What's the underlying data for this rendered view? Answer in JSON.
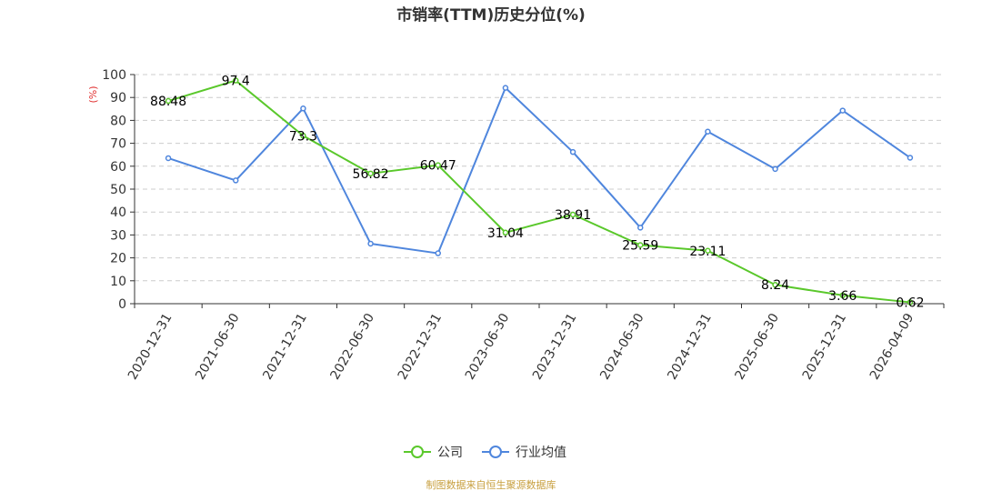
{
  "chart_data": {
    "type": "line",
    "title": "市销率(TTM)历史分位(%)",
    "ylabel": "(%)",
    "ylim": [
      0,
      100
    ],
    "yticks": [
      0,
      10,
      20,
      30,
      40,
      50,
      60,
      70,
      80,
      90,
      100
    ],
    "grid": true,
    "legend_position": "bottom-center",
    "categories": [
      "2020-12-31",
      "2021-06-30",
      "2021-12-31",
      "2022-06-30",
      "2022-12-31",
      "2023-06-30",
      "2023-12-31",
      "2024-06-30",
      "2024-12-31",
      "2025-06-30",
      "2025-12-31",
      "2026-04-09"
    ],
    "series": [
      {
        "name": "公司",
        "color": "#5ac82b",
        "values": [
          88.48,
          97.4,
          73.3,
          56.82,
          60.47,
          31.04,
          38.91,
          25.59,
          23.11,
          8.24,
          3.66,
          0.62
        ],
        "labels": [
          "88.48",
          "97.4",
          "73.3",
          "56.82",
          "60.47",
          "31.04",
          "38.91",
          "25.59",
          "23.11",
          "8.24",
          "3.66",
          "0.62"
        ]
      },
      {
        "name": "行业均值",
        "color": "#4f86dd",
        "values": [
          63.5,
          53.8,
          85.2,
          26.2,
          22.0,
          94.2,
          66.2,
          33.2,
          75.1,
          58.8,
          84.3,
          63.7
        ]
      }
    ]
  },
  "source": {
    "text": "制图数据来自恒生聚源数据库",
    "color": "#c8a040"
  },
  "colors": {
    "axis": "#333333",
    "grid": "#cccccc",
    "ylabel": "#e03030"
  }
}
